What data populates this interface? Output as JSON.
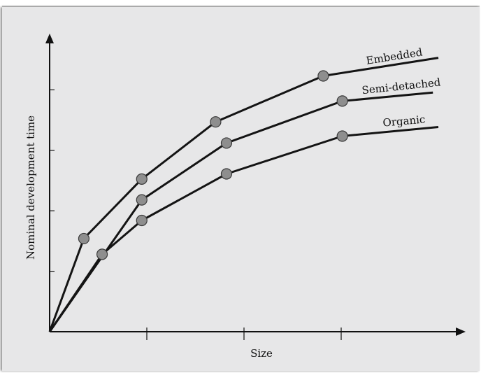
{
  "chart_data": {
    "type": "line",
    "title": "",
    "xlabel": "Size",
    "ylabel": "Nominal development time",
    "xlim": [
      0,
      100
    ],
    "ylim": [
      0,
      100
    ],
    "grid": false,
    "axis_tick_labels_shown": false,
    "x_ticks": [
      25,
      50,
      75
    ],
    "y_ticks": [
      20,
      40,
      60,
      80
    ],
    "series": [
      {
        "name": "Embedded",
        "color": "#141414",
        "points": [
          [
            0,
            0
          ],
          [
            8.8,
            30.8
          ],
          [
            23.7,
            50.5
          ],
          [
            42.7,
            69.4
          ],
          [
            70.4,
            84.6
          ],
          [
            100,
            90.6
          ]
        ],
        "marked": [
          false,
          true,
          true,
          true,
          true,
          false
        ],
        "label_angle": -9
      },
      {
        "name": "Semi-detached",
        "color": "#141414",
        "points": [
          [
            0,
            0
          ],
          [
            23.7,
            43.6
          ],
          [
            45.5,
            62.4
          ],
          [
            75.3,
            76.3
          ],
          [
            98.6,
            79.1
          ]
        ],
        "marked": [
          false,
          true,
          true,
          true,
          false
        ],
        "label_angle": -6
      },
      {
        "name": "Organic",
        "color": "#141414",
        "points": [
          [
            0,
            0
          ],
          [
            13.5,
            25.6
          ],
          [
            23.7,
            36.8
          ],
          [
            45.5,
            52.2
          ],
          [
            75.3,
            64.7
          ],
          [
            100,
            67.7
          ]
        ],
        "marked": [
          false,
          true,
          true,
          true,
          true,
          false
        ],
        "label_angle": -5
      }
    ]
  }
}
